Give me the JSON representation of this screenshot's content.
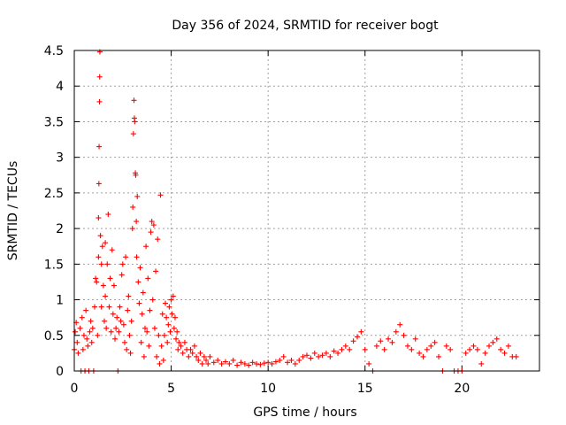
{
  "chart_data": {
    "type": "scatter",
    "title": "Day 356 of 2024, SRMTID for receiver bogt",
    "xlabel": "GPS time / hours",
    "ylabel": "SRMTID / TECUs",
    "xlim": [
      0,
      24
    ],
    "ylim": [
      0,
      4.5
    ],
    "xticks": [
      "0",
      "5",
      "10",
      "15",
      "20"
    ],
    "yticks": [
      "0",
      "0.5",
      "1",
      "1.5",
      "2",
      "2.5",
      "3",
      "3.5",
      "4",
      "4.5"
    ],
    "grid": true,
    "marker": "+",
    "colors": {
      "series": "#ff0000",
      "grid": "#a0a0a0",
      "axis": "#000000"
    },
    "series": [
      {
        "name": "SRMTID",
        "points": [
          [
            0.0,
            0.3
          ],
          [
            0.05,
            0.55
          ],
          [
            0.1,
            0.68
          ],
          [
            0.15,
            0.4
          ],
          [
            0.2,
            0.25
          ],
          [
            0.3,
            0.6
          ],
          [
            0.35,
            0.0
          ],
          [
            0.4,
            0.75
          ],
          [
            0.45,
            0.3
          ],
          [
            0.5,
            0.5
          ],
          [
            0.55,
            0.0
          ],
          [
            0.6,
            0.85
          ],
          [
            0.65,
            0.45
          ],
          [
            0.7,
            0.35
          ],
          [
            0.75,
            0.0
          ],
          [
            0.8,
            0.55
          ],
          [
            0.85,
            0.7
          ],
          [
            0.9,
            0.4
          ],
          [
            0.95,
            0.6
          ],
          [
            1.0,
            0.0
          ],
          [
            1.05,
            0.9
          ],
          [
            1.1,
            1.3
          ],
          [
            1.15,
            1.25
          ],
          [
            1.2,
            0.5
          ],
          [
            1.25,
            1.6
          ],
          [
            1.25,
            2.15
          ],
          [
            1.27,
            2.63
          ],
          [
            1.28,
            3.15
          ],
          [
            1.3,
            3.78
          ],
          [
            1.31,
            4.13
          ],
          [
            1.32,
            4.48
          ],
          [
            1.35,
            1.9
          ],
          [
            1.4,
            1.5
          ],
          [
            1.4,
            0.9
          ],
          [
            1.45,
            1.75
          ],
          [
            1.5,
            1.2
          ],
          [
            1.55,
            0.7
          ],
          [
            1.6,
            1.05
          ],
          [
            1.6,
            1.8
          ],
          [
            1.65,
            0.6
          ],
          [
            1.7,
            1.5
          ],
          [
            1.75,
            2.2
          ],
          [
            1.8,
            0.9
          ],
          [
            1.85,
            1.3
          ],
          [
            1.9,
            0.55
          ],
          [
            1.95,
            1.7
          ],
          [
            2.0,
            0.8
          ],
          [
            2.05,
            1.2
          ],
          [
            2.1,
            0.45
          ],
          [
            2.15,
            0.6
          ],
          [
            2.2,
            0.75
          ],
          [
            2.25,
            0.0
          ],
          [
            2.3,
            0.55
          ],
          [
            2.35,
            0.9
          ],
          [
            2.4,
            0.7
          ],
          [
            2.45,
            1.35
          ],
          [
            2.5,
            1.5
          ],
          [
            2.55,
            0.65
          ],
          [
            2.6,
            0.4
          ],
          [
            2.65,
            1.6
          ],
          [
            2.7,
            0.3
          ],
          [
            2.75,
            0.85
          ],
          [
            2.8,
            1.05
          ],
          [
            2.85,
            0.5
          ],
          [
            2.9,
            0.25
          ],
          [
            2.95,
            0.7
          ],
          [
            3.0,
            2.0
          ],
          [
            3.02,
            2.3
          ],
          [
            3.05,
            3.33
          ],
          [
            3.08,
            3.8
          ],
          [
            3.1,
            3.55
          ],
          [
            3.12,
            3.5
          ],
          [
            3.15,
            2.78
          ],
          [
            3.17,
            2.75
          ],
          [
            3.2,
            2.1
          ],
          [
            3.22,
            1.6
          ],
          [
            3.25,
            2.45
          ],
          [
            3.3,
            1.25
          ],
          [
            3.35,
            0.95
          ],
          [
            3.4,
            1.45
          ],
          [
            3.45,
            0.4
          ],
          [
            3.5,
            0.8
          ],
          [
            3.55,
            1.1
          ],
          [
            3.6,
            0.2
          ],
          [
            3.65,
            0.6
          ],
          [
            3.7,
            1.75
          ],
          [
            3.75,
            0.55
          ],
          [
            3.8,
            1.3
          ],
          [
            3.85,
            0.35
          ],
          [
            3.9,
            0.85
          ],
          [
            3.95,
            1.95
          ],
          [
            4.0,
            2.1
          ],
          [
            4.05,
            1.0
          ],
          [
            4.1,
            2.05
          ],
          [
            4.15,
            0.6
          ],
          [
            4.2,
            1.4
          ],
          [
            4.25,
            0.2
          ],
          [
            4.3,
            1.85
          ],
          [
            4.35,
            0.5
          ],
          [
            4.4,
            0.1
          ],
          [
            4.45,
            2.47
          ],
          [
            4.5,
            0.35
          ],
          [
            4.55,
            0.8
          ],
          [
            4.6,
            0.15
          ],
          [
            4.65,
            0.5
          ],
          [
            4.7,
            0.95
          ],
          [
            4.75,
            0.75
          ],
          [
            4.8,
            0.4
          ],
          [
            4.85,
            0.65
          ],
          [
            4.9,
            0.9
          ],
          [
            4.95,
            0.55
          ],
          [
            5.0,
            1.0
          ],
          [
            5.05,
            0.8
          ],
          [
            5.1,
            1.05
          ],
          [
            5.15,
            0.6
          ],
          [
            5.2,
            0.75
          ],
          [
            5.25,
            0.45
          ],
          [
            5.3,
            0.55
          ],
          [
            5.35,
            0.3
          ],
          [
            5.4,
            0.4
          ],
          [
            5.5,
            0.35
          ],
          [
            5.6,
            0.25
          ],
          [
            5.7,
            0.4
          ],
          [
            5.8,
            0.3
          ],
          [
            5.9,
            0.2
          ],
          [
            6.0,
            0.3
          ],
          [
            6.1,
            0.25
          ],
          [
            6.2,
            0.35
          ],
          [
            6.3,
            0.2
          ],
          [
            6.4,
            0.15
          ],
          [
            6.5,
            0.25
          ],
          [
            6.6,
            0.1
          ],
          [
            6.7,
            0.2
          ],
          [
            6.8,
            0.15
          ],
          [
            6.9,
            0.1
          ],
          [
            7.0,
            0.2
          ],
          [
            7.2,
            0.12
          ],
          [
            7.4,
            0.15
          ],
          [
            7.6,
            0.1
          ],
          [
            7.8,
            0.13
          ],
          [
            8.0,
            0.1
          ],
          [
            8.2,
            0.15
          ],
          [
            8.4,
            0.08
          ],
          [
            8.6,
            0.12
          ],
          [
            8.8,
            0.1
          ],
          [
            9.0,
            0.08
          ],
          [
            9.2,
            0.12
          ],
          [
            9.4,
            0.1
          ],
          [
            9.6,
            0.09
          ],
          [
            9.8,
            0.11
          ],
          [
            10.0,
            0.12
          ],
          [
            10.2,
            0.1
          ],
          [
            10.4,
            0.13
          ],
          [
            10.6,
            0.15
          ],
          [
            10.8,
            0.2
          ],
          [
            11.0,
            0.12
          ],
          [
            11.2,
            0.15
          ],
          [
            11.4,
            0.1
          ],
          [
            11.6,
            0.15
          ],
          [
            11.8,
            0.2
          ],
          [
            12.0,
            0.22
          ],
          [
            12.2,
            0.18
          ],
          [
            12.4,
            0.25
          ],
          [
            12.6,
            0.2
          ],
          [
            12.8,
            0.22
          ],
          [
            13.0,
            0.25
          ],
          [
            13.2,
            0.2
          ],
          [
            13.4,
            0.28
          ],
          [
            13.6,
            0.25
          ],
          [
            13.8,
            0.3
          ],
          [
            14.0,
            0.35
          ],
          [
            14.2,
            0.3
          ],
          [
            14.4,
            0.42
          ],
          [
            14.6,
            0.48
          ],
          [
            14.8,
            0.55
          ],
          [
            15.0,
            0.3
          ],
          [
            15.2,
            0.1
          ],
          [
            15.4,
            0.0
          ],
          [
            15.6,
            0.35
          ],
          [
            15.8,
            0.42
          ],
          [
            16.0,
            0.3
          ],
          [
            16.2,
            0.45
          ],
          [
            16.4,
            0.4
          ],
          [
            16.6,
            0.55
          ],
          [
            16.8,
            0.65
          ],
          [
            17.0,
            0.5
          ],
          [
            17.2,
            0.35
          ],
          [
            17.4,
            0.3
          ],
          [
            17.6,
            0.45
          ],
          [
            17.8,
            0.25
          ],
          [
            18.0,
            0.2
          ],
          [
            18.2,
            0.3
          ],
          [
            18.4,
            0.35
          ],
          [
            18.6,
            0.4
          ],
          [
            18.8,
            0.2
          ],
          [
            19.0,
            0.0
          ],
          [
            19.2,
            0.35
          ],
          [
            19.4,
            0.3
          ],
          [
            19.6,
            0.0
          ],
          [
            19.8,
            0.0
          ],
          [
            20.0,
            0.0
          ],
          [
            20.2,
            0.25
          ],
          [
            20.4,
            0.3
          ],
          [
            20.6,
            0.35
          ],
          [
            20.8,
            0.3
          ],
          [
            21.0,
            0.1
          ],
          [
            21.2,
            0.25
          ],
          [
            21.4,
            0.35
          ],
          [
            21.6,
            0.4
          ],
          [
            21.8,
            0.45
          ],
          [
            22.0,
            0.3
          ],
          [
            22.2,
            0.25
          ],
          [
            22.4,
            0.35
          ],
          [
            22.6,
            0.2
          ],
          [
            22.8,
            0.2
          ]
        ]
      }
    ]
  }
}
